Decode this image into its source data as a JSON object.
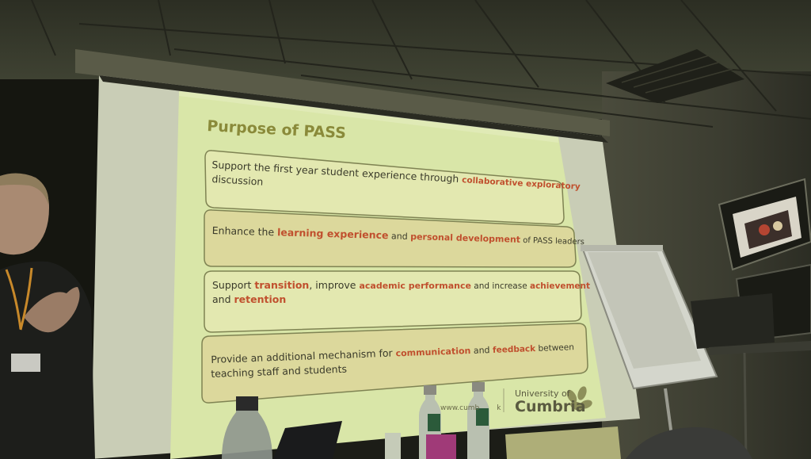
{
  "slide": {
    "title": "Purpose of PASS",
    "boxes": [
      {
        "line1_a": "Support the first year student experience through ",
        "line1_b": "collaborative exploratory",
        "line2": "discussion"
      },
      {
        "a": "Enhance the ",
        "b": "learning experience",
        "c": " and ",
        "d": "personal development",
        "e": " of PASS leaders"
      },
      {
        "line1_a": "Support ",
        "line1_b": "transition",
        "line1_c": ", improve ",
        "line1_d": "academic performance",
        "line1_e": " and increase ",
        "line1_f": "achievement",
        "line2_a": "and ",
        "line2_b": "retention"
      },
      {
        "line1_a": "Provide an additional mechanism for ",
        "line1_b": "communication",
        "line1_c": " and ",
        "line1_d": "feedback",
        "line1_e": " between",
        "line2": "teaching staff and students"
      }
    ],
    "footer_url": "www.cumb",
    "footer_url_end": "k",
    "logo_top": "University of",
    "logo_main": "Cumbria"
  },
  "colors": {
    "slide_bg": "#d9e6a8",
    "highlight": "#c0502e",
    "title": "#8a8a3a",
    "box_fill": "#dfe3a5",
    "box_fill_alt": "#d9d59a"
  },
  "icons": [
    "leaf-logo-icon",
    "lanyard-badge-icon"
  ]
}
